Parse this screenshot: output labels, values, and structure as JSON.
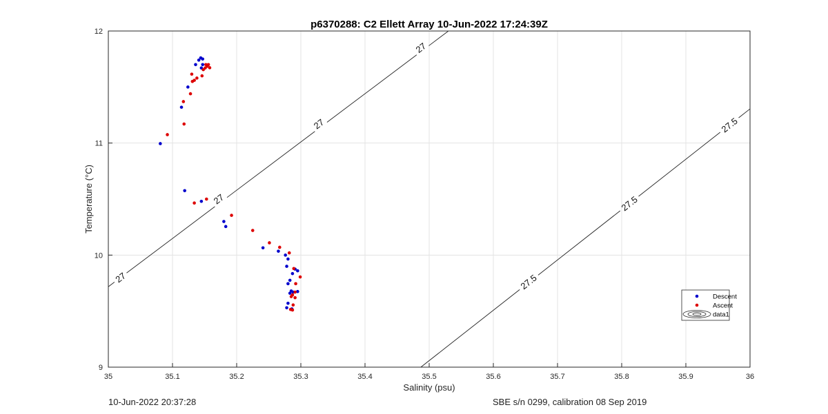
{
  "chart_data": {
    "type": "scatter",
    "title": "p6370288: C2 Ellett Array 10-Jun-2022 17:24:39Z",
    "xlabel": "Salinity (psu)",
    "ylabel": "Temperature (°C)",
    "xlim": [
      35,
      36
    ],
    "ylim": [
      9,
      12
    ],
    "x_ticks": [
      35,
      35.1,
      35.2,
      35.3,
      35.4,
      35.5,
      35.6,
      35.7,
      35.8,
      35.9,
      36
    ],
    "x_tick_labels": [
      "35",
      "35.1",
      "35.2",
      "35.3",
      "35.4",
      "35.5",
      "35.6",
      "35.7",
      "35.8",
      "35.9",
      "36"
    ],
    "y_ticks": [
      9,
      10,
      11,
      12
    ],
    "y_tick_labels": [
      "9",
      "10",
      "11",
      "12"
    ],
    "grid": true,
    "legend_position": "bottom-right",
    "contour_lines": [
      {
        "level": "27",
        "points": [
          [
            35.0,
            9.718
          ],
          [
            35.53,
            12.0
          ]
        ],
        "labels": [
          [
            35.019,
            9.8
          ],
          [
            35.172,
            10.5
          ],
          [
            35.328,
            11.17
          ],
          [
            35.487,
            11.85
          ]
        ]
      },
      {
        "level": "27.5",
        "points": [
          [
            35.487,
            9.0
          ],
          [
            36.0,
            11.305
          ]
        ],
        "labels": [
          [
            35.655,
            9.76
          ],
          [
            35.812,
            10.46
          ],
          [
            35.968,
            11.16
          ]
        ]
      }
    ],
    "series": [
      {
        "name": "Descent",
        "color": "#0000cc",
        "points": [
          [
            35.081,
            10.995
          ],
          [
            35.114,
            11.32
          ],
          [
            35.124,
            11.5
          ],
          [
            35.136,
            11.7
          ],
          [
            35.144,
            11.76
          ],
          [
            35.147,
            11.75
          ],
          [
            35.141,
            11.74
          ],
          [
            35.147,
            11.7
          ],
          [
            35.145,
            11.67
          ],
          [
            35.119,
            10.575
          ],
          [
            35.145,
            10.48
          ],
          [
            35.18,
            10.3
          ],
          [
            35.183,
            10.255
          ],
          [
            35.241,
            10.065
          ],
          [
            35.265,
            10.035
          ],
          [
            35.276,
            10.0
          ],
          [
            35.28,
            9.965
          ],
          [
            35.278,
            9.9
          ],
          [
            35.291,
            9.875
          ],
          [
            35.295,
            9.86
          ],
          [
            35.287,
            9.835
          ],
          [
            35.283,
            9.775
          ],
          [
            35.28,
            9.745
          ],
          [
            35.285,
            9.68
          ],
          [
            35.288,
            9.67
          ],
          [
            35.295,
            9.675
          ],
          [
            35.283,
            9.66
          ],
          [
            35.28,
            9.57
          ],
          [
            35.278,
            9.53
          ],
          [
            35.286,
            9.52
          ]
        ]
      },
      {
        "name": "Ascent",
        "color": "#dd0000",
        "points": [
          [
            35.092,
            11.075
          ],
          [
            35.118,
            11.17
          ],
          [
            35.117,
            11.37
          ],
          [
            35.128,
            11.44
          ],
          [
            35.131,
            11.55
          ],
          [
            35.134,
            11.56
          ],
          [
            35.138,
            11.58
          ],
          [
            35.13,
            11.615
          ],
          [
            35.146,
            11.6
          ],
          [
            35.148,
            11.655
          ],
          [
            35.151,
            11.67
          ],
          [
            35.154,
            11.685
          ],
          [
            35.156,
            11.7
          ],
          [
            35.152,
            11.7
          ],
          [
            35.158,
            11.672
          ],
          [
            35.134,
            10.465
          ],
          [
            35.153,
            10.5
          ],
          [
            35.192,
            10.355
          ],
          [
            35.225,
            10.22
          ],
          [
            35.251,
            10.11
          ],
          [
            35.267,
            10.07
          ],
          [
            35.282,
            10.02
          ],
          [
            35.289,
            9.88
          ],
          [
            35.299,
            9.805
          ],
          [
            35.292,
            9.745
          ],
          [
            35.291,
            9.67
          ],
          [
            35.287,
            9.645
          ],
          [
            35.291,
            9.62
          ],
          [
            35.285,
            9.63
          ],
          [
            35.288,
            9.555
          ],
          [
            35.287,
            9.51
          ],
          [
            35.284,
            9.515
          ]
        ]
      },
      {
        "name": "data1",
        "legend_only": true
      }
    ]
  },
  "footer": {
    "timestamp": "10-Jun-2022 20:37:28",
    "sensor_info": "SBE s/n 0299, calibration 08 Sep 2019"
  }
}
